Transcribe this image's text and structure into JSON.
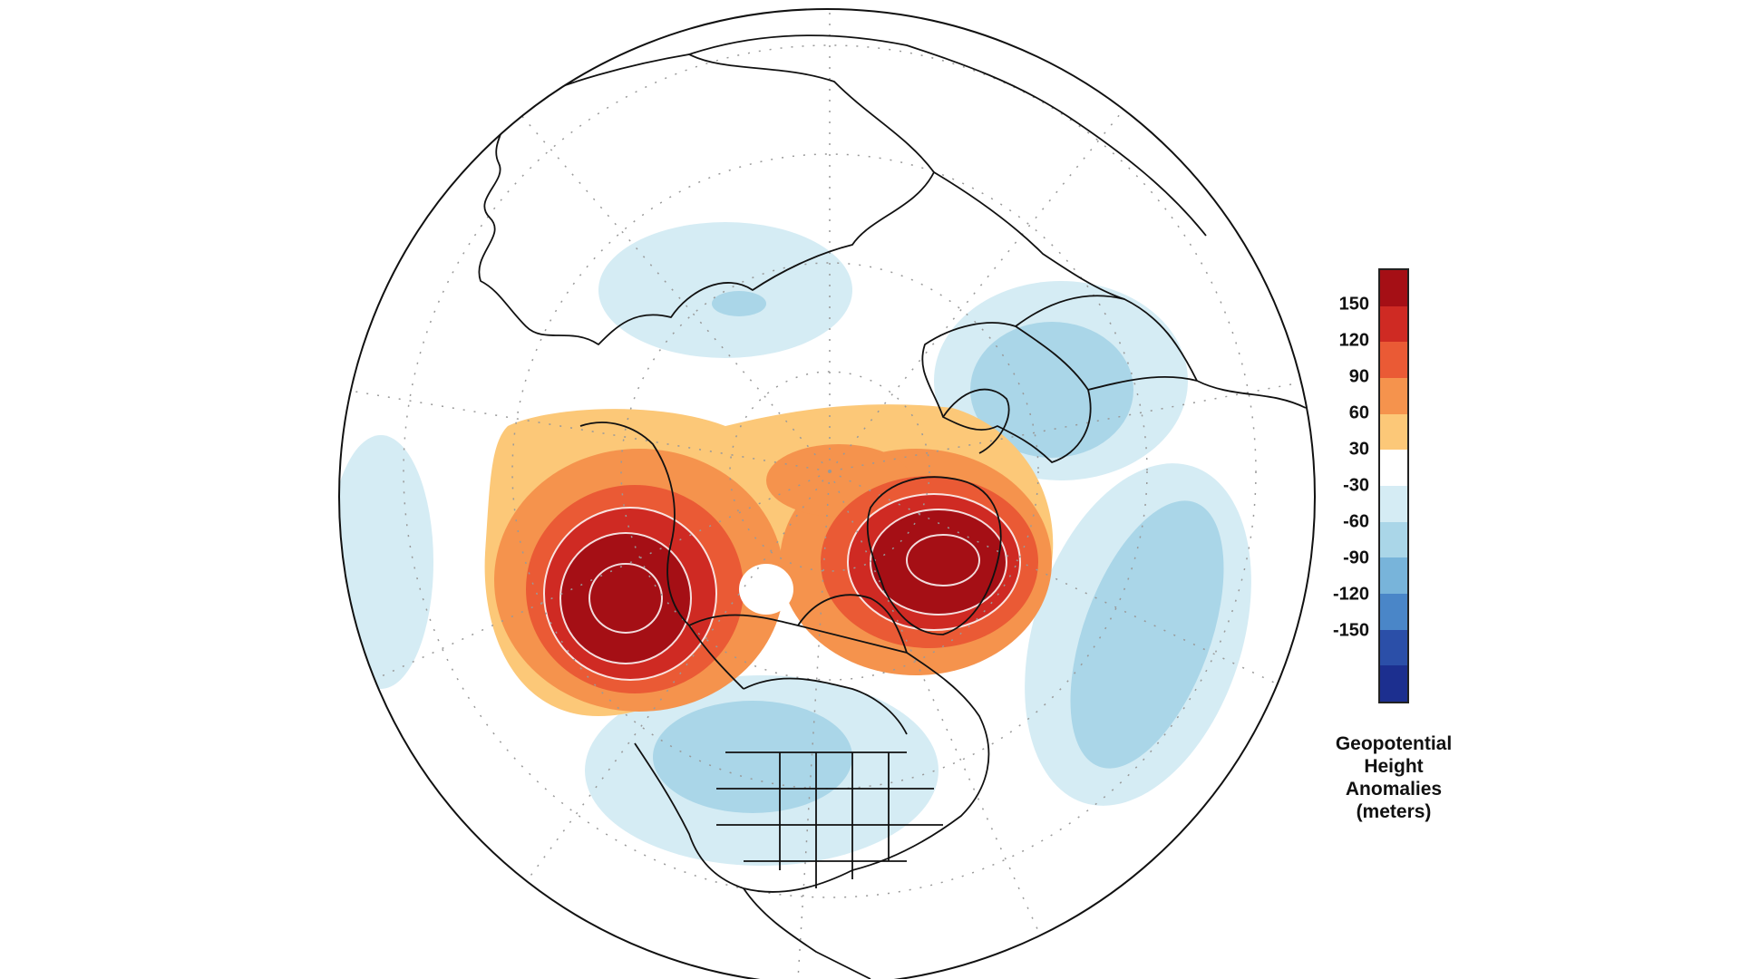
{
  "map": {
    "projection": "north polar stereographic",
    "shown_regions": [
      "North America",
      "Greenland",
      "Arctic Ocean",
      "Europe",
      "Asia",
      "North Pacific",
      "North Atlantic"
    ]
  },
  "colorbar": {
    "ticks": [
      "150",
      "120",
      "90",
      "60",
      "30",
      "-30",
      "-60",
      "-90",
      "-120",
      "-150"
    ],
    "colors": [
      "#a50f15",
      "#cf2a23",
      "#ea5a35",
      "#f5934d",
      "#fcc878",
      "#ffffff",
      "#d5ecf4",
      "#aad6e8",
      "#78b4da",
      "#4a86c8",
      "#2b4fa8",
      "#1c2f8f"
    ],
    "title_lines": [
      "Geopotential",
      "Height",
      "Anomalies",
      "(meters)"
    ]
  },
  "anomaly_centers": [
    {
      "region": "North Pacific / Alaska",
      "sign": "positive",
      "peak_m": 150
    },
    {
      "region": "Greenland / Baffin Bay",
      "sign": "positive",
      "peak_m": 150
    },
    {
      "region": "Western North America",
      "sign": "negative",
      "peak_m": -90
    },
    {
      "region": "North Atlantic",
      "sign": "negative",
      "peak_m": -90
    },
    {
      "region": "Europe",
      "sign": "negative",
      "peak_m": -90
    },
    {
      "region": "Siberia",
      "sign": "negative",
      "peak_m": -60
    }
  ]
}
